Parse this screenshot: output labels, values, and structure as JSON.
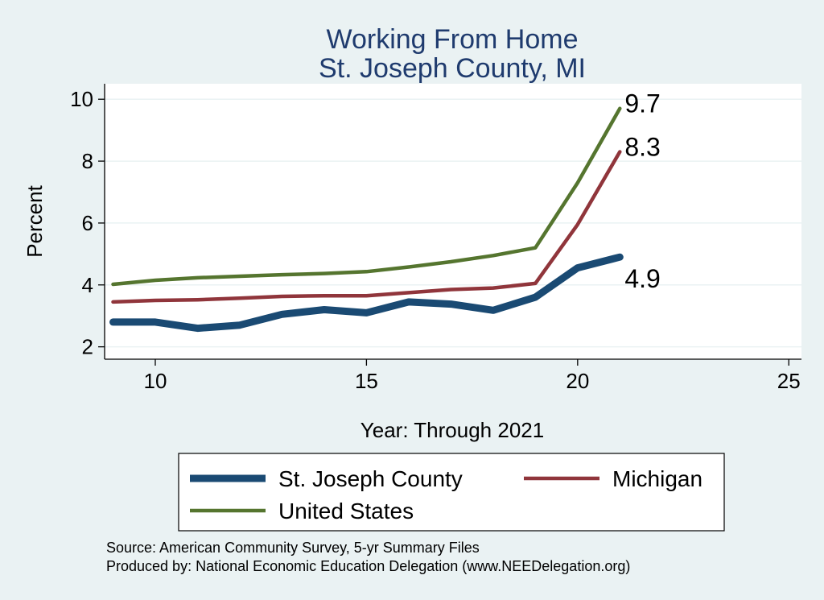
{
  "chart_data": {
    "type": "line",
    "title": "Working From Home",
    "subtitle": "St. Joseph County, MI",
    "xlabel": "Year: Through 2021",
    "ylabel": "Percent",
    "xlim": [
      8.8,
      25.3
    ],
    "ylim": [
      1.6,
      10.5
    ],
    "xticks": [
      10,
      15,
      20,
      25
    ],
    "yticks": [
      2,
      4,
      6,
      8,
      10
    ],
    "grid": true,
    "legend_position": "bottom",
    "x": [
      9,
      10,
      11,
      12,
      13,
      14,
      15,
      16,
      17,
      18,
      19,
      20,
      21
    ],
    "series": [
      {
        "name": "St. Joseph County",
        "color": "#1a4a73",
        "values": [
          2.8,
          2.8,
          2.6,
          2.7,
          3.05,
          3.2,
          3.1,
          3.45,
          3.38,
          3.18,
          3.6,
          4.55,
          4.9
        ],
        "end_label": "4.9"
      },
      {
        "name": "Michigan",
        "color": "#90353b",
        "values": [
          3.45,
          3.5,
          3.52,
          3.57,
          3.63,
          3.65,
          3.65,
          3.75,
          3.85,
          3.9,
          4.05,
          5.95,
          8.3
        ],
        "end_label": "8.3"
      },
      {
        "name": "United States",
        "color": "#55752f",
        "values": [
          4.02,
          4.15,
          4.23,
          4.28,
          4.33,
          4.37,
          4.43,
          4.58,
          4.75,
          4.95,
          5.2,
          7.3,
          9.7
        ],
        "end_label": "9.7"
      }
    ]
  },
  "footer": {
    "source": "Source: American Community Survey, 5-yr Summary Files",
    "produced": "Produced by: National Economic Education Delegation (www.NEEDelegation.org)"
  }
}
